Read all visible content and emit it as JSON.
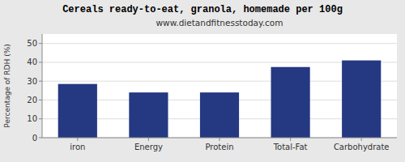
{
  "chart_data": {
    "type": "bar",
    "title": "Cereals ready-to-eat, granola, homemade per 100g",
    "subtitle": "www.dietandfitnesstoday.com",
    "categories": [
      "iron",
      "Energy",
      "Protein",
      "Total-Fat",
      "Carbohydrate"
    ],
    "values": [
      28.5,
      24.0,
      24.0,
      37.5,
      41.0
    ],
    "color": "#253882",
    "ylabel": "Percentage of RDH (%)",
    "ylim": [
      0,
      55
    ],
    "yticks": [
      0,
      10,
      20,
      30,
      40,
      50
    ],
    "grid": true
  }
}
